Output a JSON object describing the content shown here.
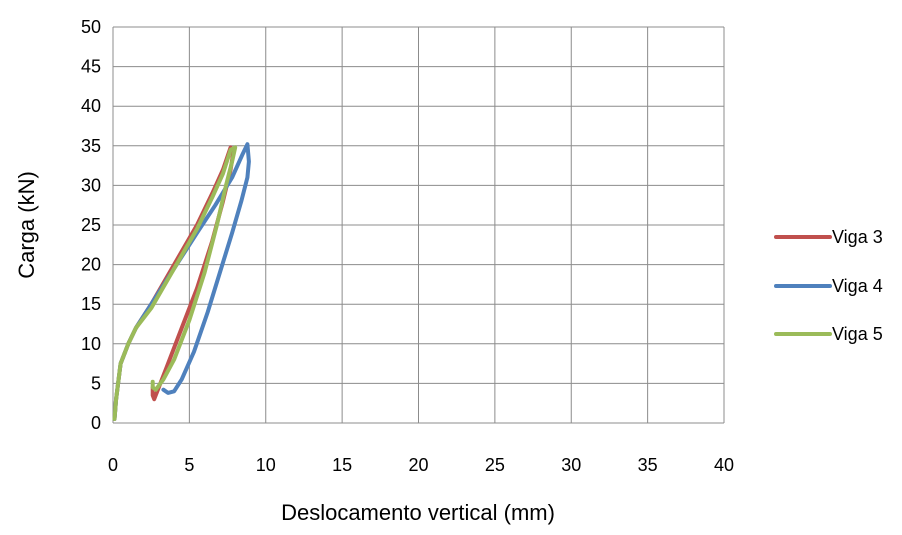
{
  "chart_data": {
    "type": "line",
    "title": "",
    "xlabel": "Deslocamento vertical (mm)",
    "ylabel": "Carga (kN)",
    "xlim": [
      0,
      40
    ],
    "ylim": [
      0,
      50
    ],
    "x_ticks": [
      0,
      5,
      10,
      15,
      20,
      25,
      30,
      35,
      40
    ],
    "y_ticks": [
      0,
      5,
      10,
      15,
      20,
      25,
      30,
      35,
      40,
      45,
      50
    ],
    "grid": true,
    "legend_position": "right",
    "series": [
      {
        "name": "Viga 3",
        "color": "#C0504D",
        "points": [
          [
            0.1,
            0.5
          ],
          [
            0.2,
            3
          ],
          [
            0.5,
            7.5
          ],
          [
            1.0,
            10
          ],
          [
            1.5,
            12
          ],
          [
            2.5,
            15
          ],
          [
            4.0,
            20
          ],
          [
            5.5,
            25
          ],
          [
            6.5,
            29
          ],
          [
            7.2,
            32
          ],
          [
            7.7,
            34.8
          ],
          [
            7.9,
            34.5
          ],
          [
            7.7,
            32
          ],
          [
            7.2,
            28
          ],
          [
            6.5,
            23
          ],
          [
            5.5,
            17
          ],
          [
            4.5,
            12
          ],
          [
            3.5,
            7
          ],
          [
            3.0,
            4.5
          ],
          [
            2.7,
            3.0
          ],
          [
            2.6,
            3.5
          ],
          [
            2.6,
            4.5
          ]
        ]
      },
      {
        "name": "Viga 4",
        "color": "#4F81BD",
        "points": [
          [
            0.1,
            0.5
          ],
          [
            0.2,
            3
          ],
          [
            0.5,
            7.5
          ],
          [
            1.0,
            10
          ],
          [
            1.5,
            12
          ],
          [
            2.5,
            15
          ],
          [
            4.0,
            19.5
          ],
          [
            5.5,
            24
          ],
          [
            6.7,
            27.5
          ],
          [
            7.8,
            31
          ],
          [
            8.5,
            34
          ],
          [
            8.8,
            35.2
          ],
          [
            8.9,
            33
          ],
          [
            8.8,
            31
          ],
          [
            8.4,
            28
          ],
          [
            7.8,
            24
          ],
          [
            7.0,
            19
          ],
          [
            6.2,
            14
          ],
          [
            5.3,
            9
          ],
          [
            4.5,
            5.5
          ],
          [
            4.0,
            4.0
          ],
          [
            3.6,
            3.8
          ],
          [
            3.3,
            4.2
          ]
        ]
      },
      {
        "name": "Viga 5",
        "color": "#9BBB59",
        "points": [
          [
            0.1,
            0.5
          ],
          [
            0.2,
            3
          ],
          [
            0.5,
            7.5
          ],
          [
            1.0,
            10
          ],
          [
            1.5,
            12
          ],
          [
            2.5,
            14.5
          ],
          [
            4.0,
            19.5
          ],
          [
            5.5,
            24.5
          ],
          [
            6.5,
            28.5
          ],
          [
            7.2,
            31.5
          ],
          [
            7.7,
            34.5
          ],
          [
            8.0,
            34.8
          ],
          [
            7.8,
            33
          ],
          [
            7.4,
            30
          ],
          [
            6.8,
            25
          ],
          [
            6.0,
            19
          ],
          [
            5.0,
            13
          ],
          [
            4.0,
            8
          ],
          [
            3.3,
            5.5
          ],
          [
            2.8,
            4.2
          ],
          [
            2.6,
            4.5
          ],
          [
            2.6,
            5.2
          ]
        ]
      }
    ]
  }
}
